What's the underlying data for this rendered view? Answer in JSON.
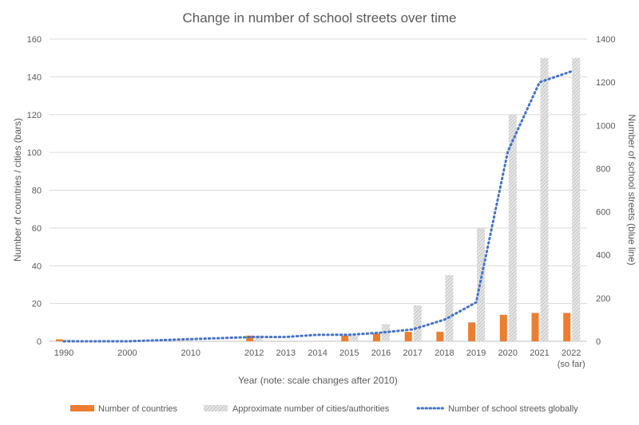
{
  "chart_data": {
    "type": "bar",
    "title": "Change in number of school streets over time",
    "xlabel": "Year (note: scale changes after 2010)",
    "ylabel": "Number of countries / cities (bars)",
    "y2label": "Number of school streets (blue line)",
    "ylim": [
      0,
      160
    ],
    "y2lim": [
      0,
      1400
    ],
    "yticks": [
      "0",
      "20",
      "40",
      "60",
      "80",
      "100",
      "120",
      "140",
      "160"
    ],
    "y2ticks": [
      "0",
      "200",
      "400",
      "600",
      "800",
      "1000",
      "1200",
      "1400"
    ],
    "grid": true,
    "legend": "bottom",
    "categories": [
      "1990",
      "",
      "2000",
      "",
      "2010",
      "",
      "2012",
      "2013",
      "2014",
      "2015",
      "2016",
      "2017",
      "2018",
      "2019",
      "2020",
      "2021",
      "2022"
    ],
    "category_sublabels": {
      "2022": "(so far)"
    },
    "series": [
      {
        "name": "Number of countries",
        "type": "bar",
        "color": "#ED7D31",
        "values": [
          1,
          null,
          null,
          null,
          null,
          null,
          3,
          null,
          null,
          3,
          4,
          5,
          5,
          10,
          14,
          15,
          15
        ]
      },
      {
        "name": "Approximate number of cities/authorities",
        "type": "bar",
        "pattern": "hatched-grey",
        "color": "#BFBFBF",
        "values": [
          1,
          null,
          null,
          null,
          null,
          null,
          3,
          null,
          null,
          3,
          9,
          19,
          35,
          60,
          120,
          150,
          150
        ]
      },
      {
        "name": "Number of school streets globally",
        "type": "line",
        "axis": "right",
        "style": "dotted",
        "color": "#4472C4",
        "values": [
          0,
          0,
          0,
          5,
          10,
          15,
          20,
          20,
          30,
          30,
          40,
          55,
          100,
          180,
          880,
          1200,
          1250
        ]
      }
    ]
  }
}
